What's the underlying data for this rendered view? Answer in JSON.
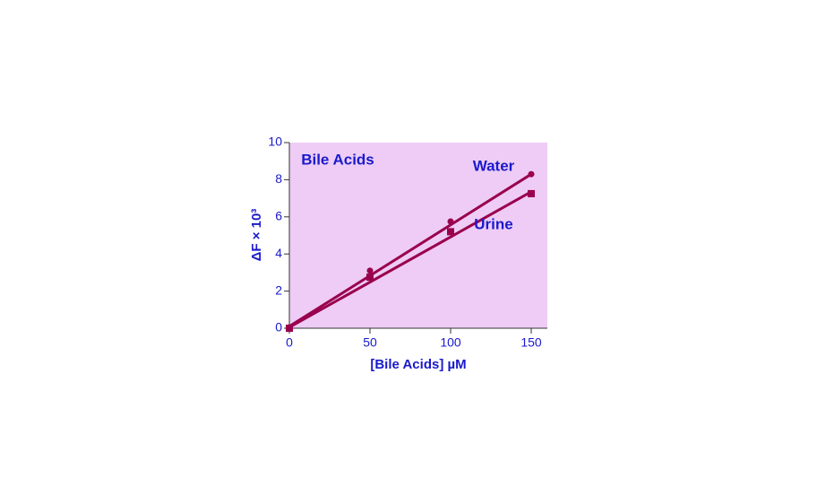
{
  "chart_data": {
    "type": "scatter",
    "title": "Bile Acids",
    "x_label": "[Bile Acids] µM",
    "y_label": "ΔF × 10³",
    "x": [
      0,
      50,
      100,
      150
    ],
    "fit_x": [
      0,
      150
    ],
    "series": [
      {
        "name": "Water",
        "color": "#99004d",
        "marker": "circle",
        "values": [
          0.05,
          3.1,
          5.75,
          8.3
        ],
        "fit_values": [
          0.1,
          8.3
        ]
      },
      {
        "name": "Urine",
        "color": "#99004d",
        "marker": "square",
        "values": [
          0.0,
          2.75,
          5.2,
          7.25
        ],
        "fit_values": [
          0.05,
          7.35
        ]
      }
    ],
    "xlim": [
      0,
      160
    ],
    "xticks": [
      0,
      50,
      100,
      150
    ],
    "ylim": [
      0,
      10
    ],
    "yticks": [
      0,
      2,
      4,
      6,
      8,
      10
    ],
    "background": "#eeccf5",
    "text_color": "#1a1acc"
  }
}
